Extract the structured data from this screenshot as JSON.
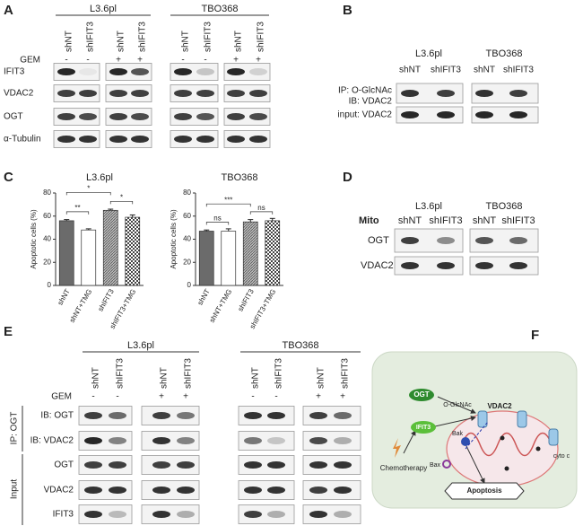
{
  "A": {
    "label": "A",
    "groups": [
      "L3.6pl",
      "TBO368"
    ],
    "lanes": [
      "shNT",
      "shIFIT3",
      "shNT",
      "shIFIT3",
      "shNT",
      "shIFIT3",
      "shNT",
      "shIFIT3"
    ],
    "gem_label": "GEM",
    "gem": [
      "-",
      "-",
      "+",
      "+",
      "-",
      "-",
      "+",
      "+"
    ],
    "rows": [
      "IFIT3",
      "VDAC2",
      "OGT",
      "α-Tubulin"
    ]
  },
  "B": {
    "label": "B",
    "groups": [
      "L3.6pl",
      "TBO368"
    ],
    "lanes": [
      "shNT",
      "shIFIT3",
      "shNT",
      "shIFIT3"
    ],
    "rows": [
      "IP: O-GlcNAc",
      "IB: VDAC2",
      "input: VDAC2"
    ]
  },
  "C": {
    "label": "C",
    "charts": [
      {
        "type": "bar",
        "title": "L3.6pl",
        "ylabel": "Apoptotic cells (%)",
        "categories": [
          "shNT",
          "shNT+TMG",
          "shIFIT3",
          "shIFIT3+TMG"
        ],
        "values": [
          56,
          48,
          65,
          59
        ],
        "errors": [
          1,
          1,
          1,
          2
        ],
        "ylim": [
          0,
          80
        ],
        "yticks": [
          0,
          20,
          40,
          60,
          80
        ],
        "colors": [
          "#6b6b6b",
          "#ffffff",
          "url(#hatch)",
          "url(#check)"
        ],
        "significance": [
          {
            "label": "**",
            "from": 0,
            "to": 1
          },
          {
            "label": "*",
            "from": 0,
            "to": 2
          },
          {
            "label": "*",
            "from": 2,
            "to": 3
          }
        ]
      },
      {
        "type": "bar",
        "title": "TBO368",
        "ylabel": "Apoptotic cells (%)",
        "categories": [
          "shNT",
          "shNT+TMG",
          "shIFIT3",
          "shIFIT3+TMG"
        ],
        "values": [
          47,
          47,
          55,
          56
        ],
        "errors": [
          1,
          2,
          2,
          2
        ],
        "ylim": [
          0,
          80
        ],
        "yticks": [
          0,
          20,
          40,
          60,
          80
        ],
        "colors": [
          "#6b6b6b",
          "#ffffff",
          "url(#hatch)",
          "url(#check)"
        ],
        "significance": [
          {
            "label": "ns",
            "from": 0,
            "to": 1
          },
          {
            "label": "***",
            "from": 0,
            "to": 2
          },
          {
            "label": "ns",
            "from": 2,
            "to": 3
          }
        ]
      }
    ]
  },
  "D": {
    "label": "D",
    "groups": [
      "L3.6pl",
      "TBO368"
    ],
    "row_header": "Mito",
    "lanes": [
      "shNT",
      "shIFIT3",
      "shNT",
      "shIFIT3"
    ],
    "rows": [
      "OGT",
      "VDAC2"
    ]
  },
  "E": {
    "label": "E",
    "groups": [
      "L3.6pl",
      "TBO368"
    ],
    "lanes": [
      "shNT",
      "shIFIT3",
      "shNT",
      "shIFIT3",
      "shNT",
      "shIFIT3",
      "shNT",
      "shIFIT3"
    ],
    "gem_label": "GEM",
    "gem": [
      "-",
      "-",
      "+",
      "+",
      "-",
      "-",
      "+",
      "+"
    ],
    "sections": [
      "IP: OGT",
      "Input"
    ],
    "rows": [
      "IB: OGT",
      "IB: VDAC2",
      "OGT",
      "VDAC2",
      "IFIT3"
    ]
  },
  "F": {
    "label": "F",
    "nodes": [
      "OGT",
      "O-GlcNAc",
      "VDAC2",
      "IFIT3",
      "Bak",
      "Bax",
      "Chemotherapy",
      "cyto c",
      "Apoptosis"
    ]
  }
}
